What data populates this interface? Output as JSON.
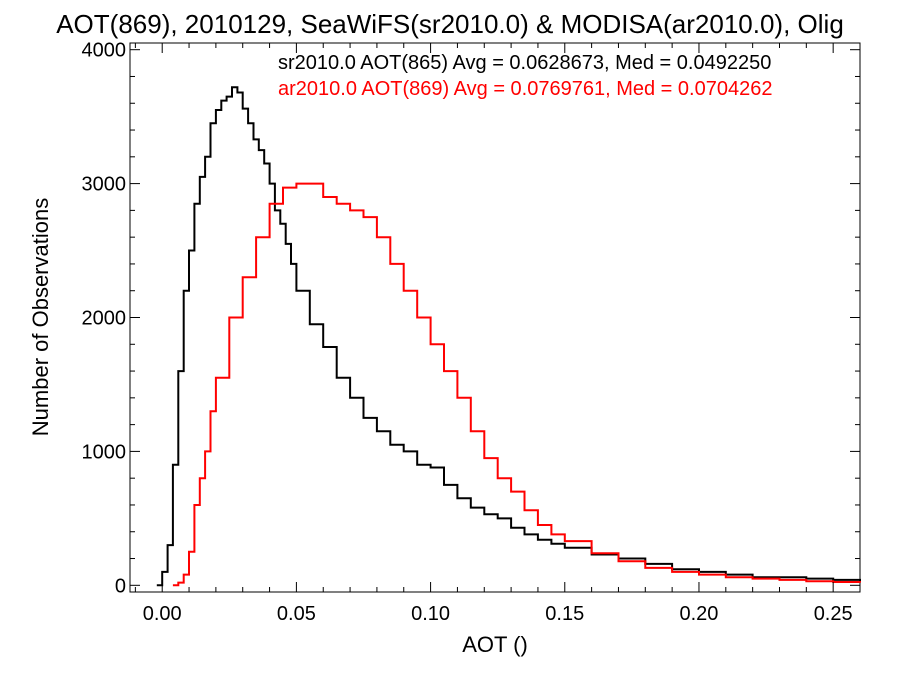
{
  "chart_data": {
    "type": "line",
    "title": "AOT(869), 2010129, SeaWiFS(sr2010.0) & MODISA(ar2010.0), Olig",
    "xlabel": "AOT ()",
    "ylabel": "Number of Observations",
    "xlim": [
      -0.012,
      0.26
    ],
    "ylim": [
      -50,
      4050
    ],
    "x_ticks": [
      0.0,
      0.05,
      0.1,
      0.15,
      0.2,
      0.25
    ],
    "x_tick_labels": [
      "0.00",
      "0.05",
      "0.10",
      "0.15",
      "0.20",
      "0.25"
    ],
    "y_ticks": [
      0,
      1000,
      2000,
      3000,
      4000
    ],
    "y_tick_labels": [
      "0",
      "1000",
      "2000",
      "3000",
      "4000"
    ],
    "legend_position": "top-right",
    "grid": false,
    "annotations": [
      "sr2010.0 AOT(865) Avg = 0.0628673, Med = 0.0492250",
      "ar2010.0 AOT(869) Avg = 0.0769761, Med = 0.0704262"
    ],
    "series": [
      {
        "color": "#000000",
        "x": [
          -0.002,
          0.0,
          0.002,
          0.004,
          0.006,
          0.008,
          0.01,
          0.012,
          0.014,
          0.016,
          0.018,
          0.02,
          0.022,
          0.024,
          0.026,
          0.028,
          0.03,
          0.032,
          0.034,
          0.036,
          0.038,
          0.04,
          0.042,
          0.044,
          0.046,
          0.048,
          0.05,
          0.055,
          0.06,
          0.065,
          0.07,
          0.075,
          0.08,
          0.085,
          0.09,
          0.095,
          0.1,
          0.105,
          0.11,
          0.115,
          0.12,
          0.125,
          0.13,
          0.135,
          0.14,
          0.145,
          0.15,
          0.16,
          0.17,
          0.18,
          0.19,
          0.2,
          0.21,
          0.22,
          0.23,
          0.24,
          0.25,
          0.26
        ],
        "values": [
          0,
          100,
          300,
          900,
          1600,
          2200,
          2500,
          2850,
          3050,
          3200,
          3450,
          3550,
          3620,
          3650,
          3720,
          3680,
          3560,
          3450,
          3330,
          3250,
          3150,
          3000,
          2800,
          2700,
          2550,
          2400,
          2200,
          1950,
          1780,
          1550,
          1400,
          1250,
          1150,
          1050,
          1000,
          900,
          880,
          750,
          650,
          580,
          530,
          500,
          430,
          380,
          340,
          310,
          280,
          230,
          200,
          160,
          120,
          100,
          80,
          60,
          60,
          50,
          40,
          30
        ]
      },
      {
        "color": "#ff0000",
        "x": [
          0.004,
          0.006,
          0.008,
          0.01,
          0.012,
          0.014,
          0.016,
          0.018,
          0.02,
          0.025,
          0.03,
          0.035,
          0.04,
          0.045,
          0.05,
          0.055,
          0.06,
          0.065,
          0.07,
          0.075,
          0.08,
          0.085,
          0.09,
          0.095,
          0.1,
          0.105,
          0.11,
          0.115,
          0.12,
          0.125,
          0.13,
          0.135,
          0.14,
          0.145,
          0.15,
          0.16,
          0.17,
          0.18,
          0.19,
          0.2,
          0.21,
          0.22,
          0.23,
          0.24,
          0.25,
          0.26
        ],
        "values": [
          0,
          20,
          80,
          250,
          600,
          800,
          1000,
          1300,
          1550,
          2000,
          2300,
          2600,
          2850,
          2970,
          3000,
          3000,
          2900,
          2850,
          2800,
          2750,
          2600,
          2400,
          2200,
          2000,
          1800,
          1600,
          1400,
          1150,
          950,
          800,
          700,
          560,
          450,
          380,
          330,
          240,
          180,
          130,
          100,
          80,
          60,
          50,
          40,
          30,
          25,
          20
        ]
      }
    ]
  }
}
